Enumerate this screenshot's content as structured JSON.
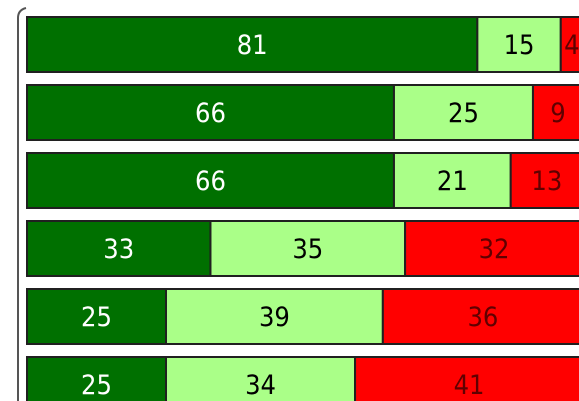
{
  "chart_data": {
    "type": "stacked_barh",
    "categories": [
      null,
      null,
      null,
      null,
      null,
      null
    ],
    "series": [
      {
        "color": "#007000",
        "label_color": "#ffffff",
        "values": [
          81,
          66,
          66,
          33,
          25,
          25
        ]
      },
      {
        "color": "#aaff88",
        "label_color": "#000000",
        "values": [
          15,
          25,
          21,
          35,
          39,
          34
        ]
      },
      {
        "color": "#ff0000",
        "label_color": "#600000",
        "values": [
          4,
          9,
          13,
          32,
          36,
          41
        ]
      }
    ],
    "xlim": [
      0,
      100
    ]
  }
}
